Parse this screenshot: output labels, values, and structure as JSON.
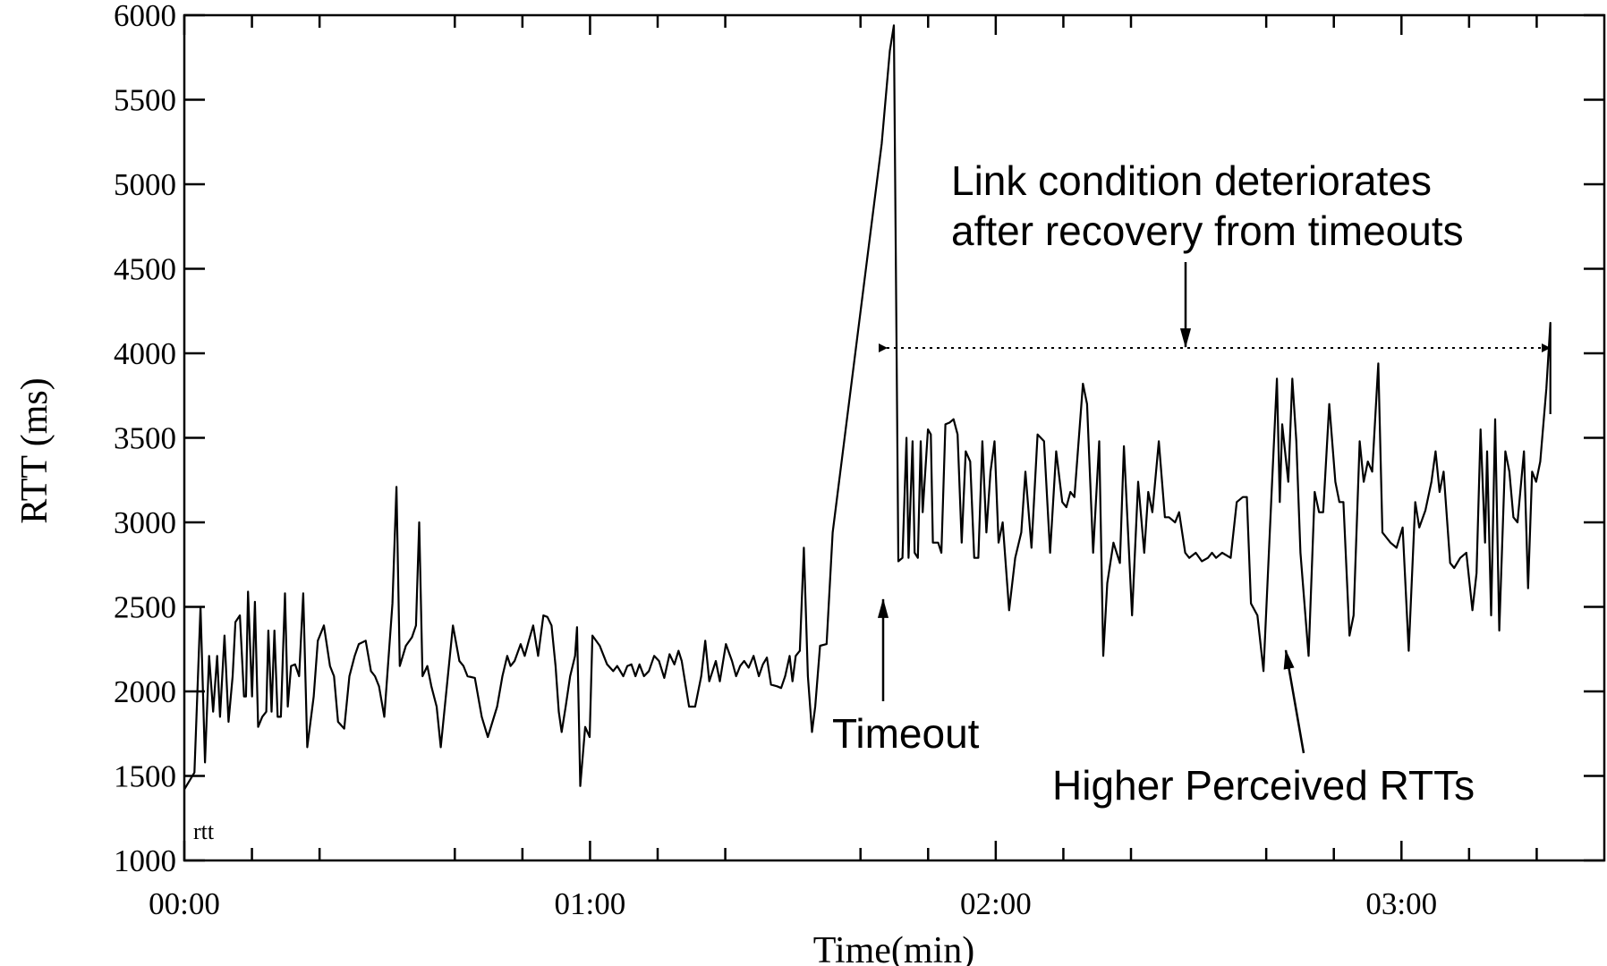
{
  "chart_data": {
    "type": "line",
    "title": "",
    "xlabel": "Time(min)",
    "ylabel": "RTT (ms)",
    "xlim": [
      0,
      3.5
    ],
    "ylim": [
      1000,
      6000
    ],
    "x_ticks": [
      0,
      1,
      2,
      3
    ],
    "x_tick_labels": [
      "00:00",
      "01:00",
      "02:00",
      "03:00"
    ],
    "y_ticks": [
      1000,
      1500,
      2000,
      2500,
      3000,
      3500,
      4000,
      4500,
      5000,
      5500,
      6000
    ],
    "y_tick_labels": [
      "1000",
      "1500",
      "2000",
      "2500",
      "3000",
      "3500",
      "4000",
      "4500",
      "5000",
      "5500",
      "6000"
    ],
    "grid": false,
    "line_color": "#000000",
    "series": [
      {
        "name": "rtt",
        "x": [
          0.0,
          0.025,
          0.04,
          0.051,
          0.061,
          0.071,
          0.081,
          0.088,
          0.099,
          0.109,
          0.119,
          0.126,
          0.137,
          0.147,
          0.152,
          0.157,
          0.167,
          0.174,
          0.182,
          0.192,
          0.202,
          0.207,
          0.215,
          0.222,
          0.23,
          0.238,
          0.248,
          0.255,
          0.263,
          0.273,
          0.283,
          0.293,
          0.303,
          0.319,
          0.329,
          0.344,
          0.359,
          0.369,
          0.379,
          0.394,
          0.407,
          0.42,
          0.43,
          0.447,
          0.46,
          0.47,
          0.48,
          0.493,
          0.513,
          0.523,
          0.531,
          0.546,
          0.561,
          0.571,
          0.579,
          0.587,
          0.599,
          0.609,
          0.622,
          0.632,
          0.647,
          0.662,
          0.678,
          0.688,
          0.698,
          0.716,
          0.733,
          0.748,
          0.771,
          0.784,
          0.796,
          0.804,
          0.814,
          0.829,
          0.839,
          0.849,
          0.86,
          0.872,
          0.885,
          0.895,
          0.905,
          0.915,
          0.923,
          0.93,
          0.94,
          0.951,
          0.963,
          0.968,
          0.976,
          0.988,
          0.999,
          1.006,
          1.024,
          1.042,
          1.057,
          1.067,
          1.082,
          1.092,
          1.102,
          1.112,
          1.122,
          1.133,
          1.145,
          1.158,
          1.17,
          1.183,
          1.196,
          1.208,
          1.218,
          1.226,
          1.244,
          1.259,
          1.274,
          1.284,
          1.294,
          1.31,
          1.32,
          1.335,
          1.35,
          1.36,
          1.37,
          1.38,
          1.391,
          1.403,
          1.416,
          1.426,
          1.436,
          1.446,
          1.461,
          1.471,
          1.481,
          1.492,
          1.499,
          1.507,
          1.517,
          1.527,
          1.537,
          1.547,
          1.555,
          1.567,
          1.583,
          1.598,
          1.719,
          1.739,
          1.749,
          1.76,
          1.77,
          1.78,
          1.785,
          1.795,
          1.8,
          1.808,
          1.815,
          1.82,
          1.833,
          1.84,
          1.845,
          1.858,
          1.866,
          1.876,
          1.886,
          1.896,
          1.906,
          1.916,
          1.926,
          1.937,
          1.947,
          1.957,
          1.967,
          1.977,
          1.987,
          1.997,
          2.007,
          2.017,
          2.033,
          2.048,
          2.063,
          2.073,
          2.088,
          2.103,
          2.119,
          2.134,
          2.149,
          2.164,
          2.174,
          2.184,
          2.194,
          2.215,
          2.225,
          2.24,
          2.255,
          2.265,
          2.275,
          2.29,
          2.306,
          2.316,
          2.336,
          2.351,
          2.366,
          2.376,
          2.386,
          2.402,
          2.417,
          2.427,
          2.442,
          2.452,
          2.467,
          2.477,
          2.493,
          2.508,
          2.523,
          2.533,
          2.543,
          2.558,
          2.579,
          2.594,
          2.609,
          2.619,
          2.629,
          2.645,
          2.66,
          2.68,
          2.693,
          2.7,
          2.706,
          2.721,
          2.731,
          2.741,
          2.751,
          2.771,
          2.786,
          2.797,
          2.807,
          2.822,
          2.837,
          2.847,
          2.857,
          2.872,
          2.882,
          2.897,
          2.907,
          2.917,
          2.928,
          2.943,
          2.953,
          2.963,
          2.973,
          2.988,
          3.003,
          3.018,
          3.034,
          3.044,
          3.059,
          3.074,
          3.084,
          3.094,
          3.104,
          3.12,
          3.13,
          3.145,
          3.16,
          3.175,
          3.185,
          3.195,
          3.206,
          3.211,
          3.221,
          3.231,
          3.241,
          3.256,
          3.266,
          3.276,
          3.286,
          3.302,
          3.312,
          3.322,
          3.332,
          3.342,
          3.357,
          3.367,
          3.367
        ],
        "y": [
          1420,
          1520,
          2500,
          1580,
          2210,
          1880,
          2210,
          1850,
          2330,
          1820,
          2090,
          2410,
          2450,
          1970,
          1970,
          2590,
          1970,
          2530,
          1790,
          1850,
          1880,
          2360,
          1880,
          2360,
          1850,
          1850,
          2580,
          1910,
          2150,
          2160,
          2090,
          2580,
          1670,
          1970,
          2300,
          2390,
          2150,
          2090,
          1820,
          1780,
          2090,
          2210,
          2280,
          2300,
          2120,
          2090,
          2030,
          1850,
          2520,
          3210,
          2150,
          2270,
          2320,
          2390,
          3000,
          2090,
          2150,
          2030,
          1910,
          1670,
          2030,
          2390,
          2180,
          2150,
          2090,
          2080,
          1850,
          1730,
          1910,
          2090,
          2210,
          2150,
          2180,
          2280,
          2210,
          2300,
          2390,
          2210,
          2450,
          2440,
          2390,
          2150,
          1880,
          1760,
          1910,
          2090,
          2210,
          2380,
          1440,
          1790,
          1730,
          2330,
          2270,
          2160,
          2120,
          2150,
          2090,
          2150,
          2160,
          2090,
          2160,
          2090,
          2120,
          2210,
          2180,
          2080,
          2220,
          2160,
          2240,
          2180,
          1910,
          1910,
          2090,
          2300,
          2060,
          2180,
          2060,
          2280,
          2180,
          2090,
          2150,
          2180,
          2140,
          2210,
          2090,
          2160,
          2200,
          2040,
          2030,
          2020,
          2090,
          2210,
          2060,
          2210,
          2240,
          2850,
          2090,
          1760,
          1910,
          2270,
          2280,
          2940,
          5240,
          5790,
          5940,
          2770,
          2790,
          3500,
          2790,
          3480,
          2820,
          2790,
          3480,
          3060,
          3550,
          3520,
          2880,
          2880,
          2820,
          3580,
          3590,
          3610,
          3520,
          2880,
          3420,
          3360,
          2790,
          2790,
          3480,
          2940,
          3300,
          3480,
          2880,
          3000,
          2480,
          2790,
          2940,
          3300,
          2850,
          3520,
          3480,
          2820,
          3420,
          3120,
          3090,
          3180,
          3150,
          3820,
          3700,
          2820,
          3480,
          2210,
          2640,
          2880,
          2760,
          3450,
          2450,
          3240,
          2820,
          3180,
          3060,
          3480,
          3030,
          3030,
          3000,
          3060,
          2820,
          2790,
          2820,
          2770,
          2790,
          2820,
          2790,
          2820,
          2790,
          3120,
          3150,
          3150,
          2520,
          2450,
          2120,
          3180,
          3850,
          3120,
          3580,
          3240,
          3850,
          3480,
          2820,
          2210,
          3180,
          3060,
          3060,
          3700,
          3240,
          3120,
          3120,
          2330,
          2450,
          3480,
          3240,
          3360,
          3300,
          3940,
          2940,
          2910,
          2880,
          2850,
          2970,
          2240,
          3120,
          2970,
          3070,
          3240,
          3420,
          3180,
          3300,
          2760,
          2730,
          2790,
          2820,
          2480,
          2700,
          3550,
          2880,
          3420,
          2450,
          3610,
          2360,
          3420,
          3300,
          3030,
          3000,
          3420,
          2610,
          3300,
          3240,
          3360,
          3790,
          4180,
          3640
        ]
      }
    ],
    "annotations": {
      "deteriorates_line1": "Link condition deteriorates",
      "deteriorates_line2": "after recovery from timeouts",
      "timeout": "Timeout",
      "higher_rtts": "Higher Perceived RTTs"
    }
  }
}
